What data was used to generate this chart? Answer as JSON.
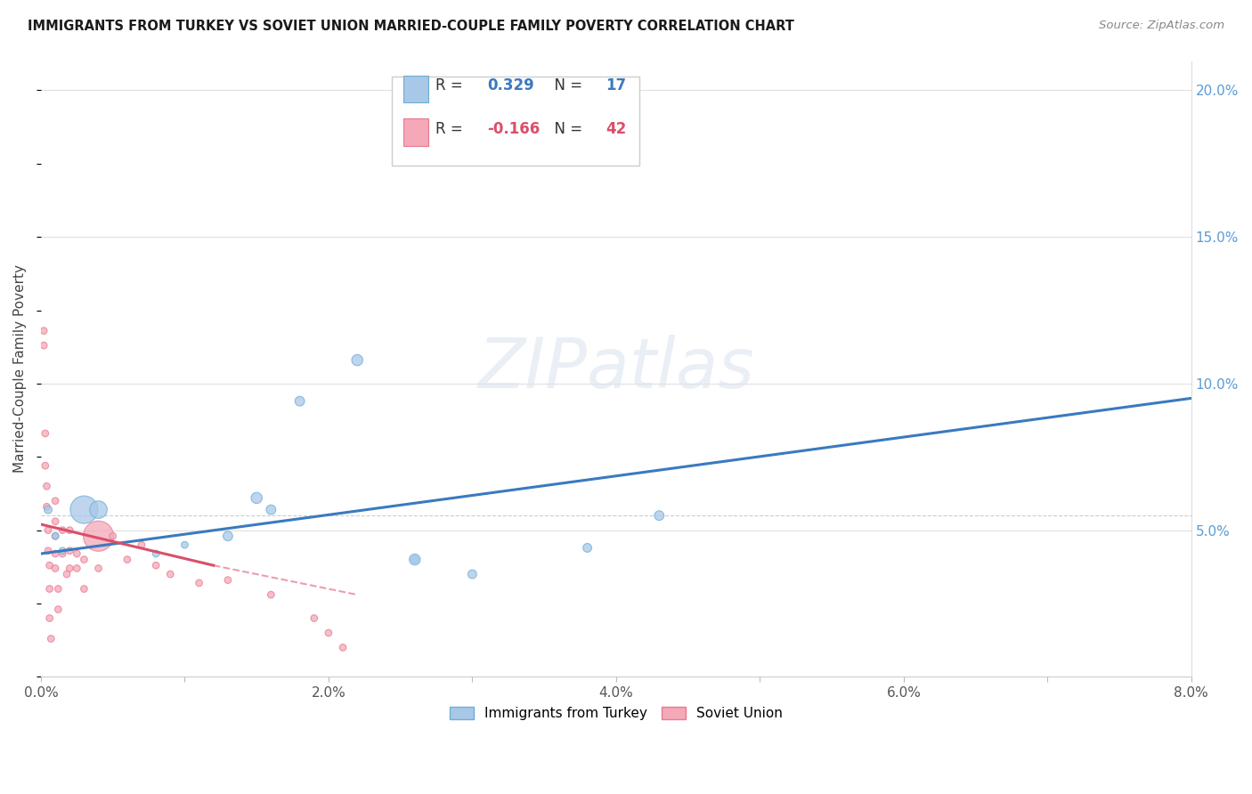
{
  "title": "IMMIGRANTS FROM TURKEY VS SOVIET UNION MARRIED-COUPLE FAMILY POVERTY CORRELATION CHART",
  "source": "Source: ZipAtlas.com",
  "ylabel": "Married-Couple Family Poverty",
  "xlim": [
    0.0,
    0.08
  ],
  "ylim": [
    0.0,
    0.21
  ],
  "xticks": [
    0.0,
    0.01,
    0.02,
    0.03,
    0.04,
    0.05,
    0.06,
    0.07,
    0.08
  ],
  "xticklabels": [
    "0.0%",
    "",
    "2.0%",
    "",
    "4.0%",
    "",
    "6.0%",
    "",
    "8.0%"
  ],
  "yticks_right": [
    0.05,
    0.1,
    0.15,
    0.2
  ],
  "ytick_labels_right": [
    "5.0%",
    "10.0%",
    "15.0%",
    "20.0%"
  ],
  "turkey_color": "#a8c8e8",
  "turkey_edge_color": "#6baed6",
  "soviet_color": "#f4a8b8",
  "soviet_edge_color": "#e87a90",
  "legend_turkey_label": "Immigrants from Turkey",
  "legend_soviet_label": "Soviet Union",
  "turkey_R": "0.329",
  "turkey_N": "17",
  "soviet_R": "-0.166",
  "soviet_N": "42",
  "turkey_line_color": "#3a7abf",
  "soviet_line_color": "#d94f6a",
  "watermark": "ZIPatlas",
  "turkey_x": [
    0.0005,
    0.001,
    0.0015,
    0.003,
    0.004,
    0.008,
    0.01,
    0.013,
    0.015,
    0.016,
    0.018,
    0.022,
    0.026,
    0.026,
    0.03,
    0.038,
    0.043
  ],
  "turkey_y": [
    0.057,
    0.048,
    0.043,
    0.057,
    0.057,
    0.042,
    0.045,
    0.048,
    0.061,
    0.057,
    0.094,
    0.108,
    0.04,
    0.04,
    0.035,
    0.044,
    0.055
  ],
  "turkey_size": [
    40,
    30,
    30,
    500,
    200,
    30,
    30,
    60,
    80,
    60,
    60,
    80,
    40,
    80,
    50,
    50,
    60
  ],
  "soviet_x": [
    0.0002,
    0.0002,
    0.0003,
    0.0003,
    0.0004,
    0.0004,
    0.0005,
    0.0005,
    0.0006,
    0.0006,
    0.0006,
    0.0007,
    0.001,
    0.001,
    0.001,
    0.001,
    0.001,
    0.0012,
    0.0012,
    0.0015,
    0.0015,
    0.0018,
    0.002,
    0.002,
    0.002,
    0.0025,
    0.0025,
    0.003,
    0.003,
    0.004,
    0.004,
    0.005,
    0.006,
    0.007,
    0.008,
    0.009,
    0.011,
    0.013,
    0.016,
    0.019,
    0.02,
    0.021
  ],
  "soviet_y": [
    0.118,
    0.113,
    0.083,
    0.072,
    0.065,
    0.058,
    0.05,
    0.043,
    0.038,
    0.03,
    0.02,
    0.013,
    0.06,
    0.053,
    0.048,
    0.042,
    0.037,
    0.03,
    0.023,
    0.05,
    0.042,
    0.035,
    0.05,
    0.043,
    0.037,
    0.042,
    0.037,
    0.03,
    0.04,
    0.048,
    0.037,
    0.048,
    0.04,
    0.045,
    0.038,
    0.035,
    0.032,
    0.033,
    0.028,
    0.02,
    0.015,
    0.01
  ],
  "soviet_size": [
    30,
    30,
    30,
    30,
    30,
    30,
    30,
    30,
    30,
    30,
    30,
    30,
    30,
    30,
    30,
    30,
    30,
    30,
    30,
    30,
    30,
    30,
    30,
    30,
    30,
    30,
    30,
    30,
    30,
    600,
    30,
    30,
    30,
    30,
    30,
    30,
    30,
    30,
    30,
    30,
    30,
    30
  ],
  "turkey_line_x0": 0.0,
  "turkey_line_y0": 0.042,
  "turkey_line_x1": 0.08,
  "turkey_line_y1": 0.095,
  "soviet_line_x0": 0.0,
  "soviet_line_y0": 0.052,
  "soviet_line_x1_solid": 0.012,
  "soviet_line_y1_solid": 0.038,
  "soviet_line_x1_dash": 0.022,
  "soviet_line_y1_dash": 0.028
}
